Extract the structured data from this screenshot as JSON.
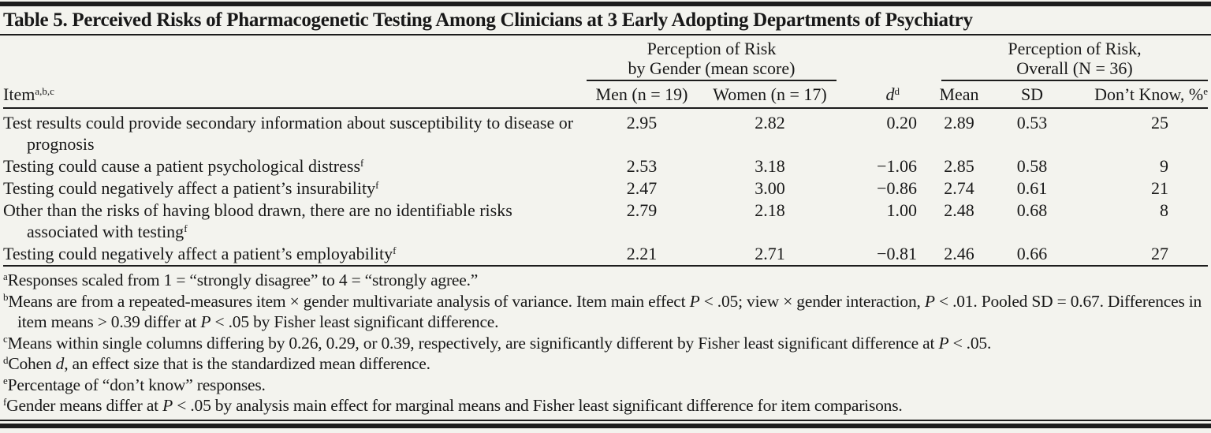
{
  "title": "Table 5. Perceived Risks of Pharmacogenetic Testing Among Clinicians at 3 Early Adopting Departments of Psychiatry",
  "colors": {
    "background": "#f3f3ee",
    "text": "#181818",
    "rule": "#1c1c1c"
  },
  "table": {
    "spanners": {
      "gender": {
        "line1": "Perception of Risk",
        "line2": "by Gender (mean score)"
      },
      "overall": {
        "line1": "Perception of Risk,",
        "line2": "Overall (N = 36)"
      }
    },
    "columns": {
      "item": {
        "text": "Item",
        "sup": "a,b,c"
      },
      "men": "Men (n = 19)",
      "women": "Women (n = 17)",
      "d": {
        "text": "d",
        "sup": "d"
      },
      "mean": "Mean",
      "sd": "SD",
      "dont_know": {
        "text": "Don’t Know, %",
        "sup": "e"
      }
    },
    "rows": [
      {
        "item": "Test results could provide secondary information about susceptibility to disease or prognosis",
        "sup": "",
        "men": "2.95",
        "women": "2.82",
        "d": "0.20",
        "mean": "2.89",
        "sd": "0.53",
        "dont_know": "25"
      },
      {
        "item": "Testing could cause a patient psychological distress",
        "sup": "f",
        "men": "2.53",
        "women": "3.18",
        "d": "−1.06",
        "mean": "2.85",
        "sd": "0.58",
        "dont_know": "9"
      },
      {
        "item": "Testing could negatively affect a patient’s insurability",
        "sup": "f",
        "men": "2.47",
        "women": "3.00",
        "d": "−0.86",
        "mean": "2.74",
        "sd": "0.61",
        "dont_know": "21"
      },
      {
        "item": "Other than the risks of having blood drawn, there are no identifiable risks associated with testing",
        "sup": "f",
        "men": "2.79",
        "women": "2.18",
        "d": "1.00",
        "mean": "2.48",
        "sd": "0.68",
        "dont_know": "8"
      },
      {
        "item": "Testing could negatively affect a patient’s employability",
        "sup": "f",
        "men": "2.21",
        "women": "2.71",
        "d": "−0.81",
        "mean": "2.46",
        "sd": "0.66",
        "dont_know": "27"
      }
    ],
    "footnotes": [
      {
        "sup": "a",
        "segments": [
          {
            "t": "Responses scaled from 1 = “strongly disagree” to 4 = “strongly agree.”"
          }
        ]
      },
      {
        "sup": "b",
        "segments": [
          {
            "t": "Means are from a repeated-measures item × gender multivariate analysis of variance. Item main effect "
          },
          {
            "t": "P",
            "i": true
          },
          {
            "t": " < .05; view × gender interaction, "
          },
          {
            "t": "P",
            "i": true
          },
          {
            "t": " < .01. Pooled SD = 0.67. Differences in item means > 0.39 differ at "
          },
          {
            "t": "P",
            "i": true
          },
          {
            "t": " < .05 by Fisher least significant difference."
          }
        ]
      },
      {
        "sup": "c",
        "segments": [
          {
            "t": "Means within single columns differing by 0.26, 0.29, or 0.39, respectively, are significantly different by Fisher least significant difference at "
          },
          {
            "t": "P",
            "i": true
          },
          {
            "t": " < .05."
          }
        ]
      },
      {
        "sup": "d",
        "segments": [
          {
            "t": "Cohen "
          },
          {
            "t": "d",
            "i": true
          },
          {
            "t": ", an effect size that is the standardized mean difference."
          }
        ]
      },
      {
        "sup": "e",
        "segments": [
          {
            "t": "Percentage of “don’t know” responses."
          }
        ]
      },
      {
        "sup": "f",
        "segments": [
          {
            "t": "Gender means differ at "
          },
          {
            "t": "P",
            "i": true
          },
          {
            "t": " < .05 by analysis main effect for marginal means and Fisher least significant difference for item comparisons."
          }
        ]
      }
    ]
  }
}
